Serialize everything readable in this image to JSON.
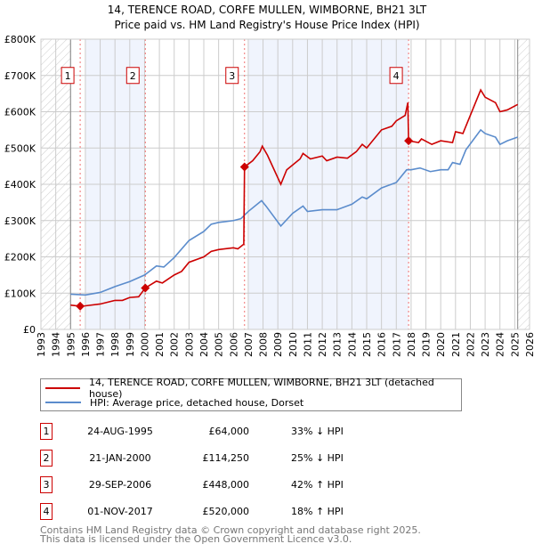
{
  "chart_data": {
    "type": "line",
    "title": "14, TERENCE ROAD, CORFE MULLEN, WIMBORNE, BH21 3LT",
    "subtitle": "Price paid vs. HM Land Registry's House Price Index (HPI)",
    "xlim": [
      1993,
      2026
    ],
    "ylim": [
      0,
      800000
    ],
    "y_ticks": [
      {
        "v": 0,
        "label": "£0"
      },
      {
        "v": 100000,
        "label": "£100K"
      },
      {
        "v": 200000,
        "label": "£200K"
      },
      {
        "v": 300000,
        "label": "£300K"
      },
      {
        "v": 400000,
        "label": "£400K"
      },
      {
        "v": 500000,
        "label": "£500K"
      },
      {
        "v": 600000,
        "label": "£600K"
      },
      {
        "v": 700000,
        "label": "£700K"
      },
      {
        "v": 800000,
        "label": "£800K"
      }
    ],
    "x_ticks": [
      "1993",
      "1994",
      "1995",
      "1996",
      "1997",
      "1998",
      "1999",
      "2000",
      "2001",
      "2002",
      "2003",
      "2004",
      "2005",
      "2006",
      "2007",
      "2008",
      "2009",
      "2010",
      "2011",
      "2012",
      "2013",
      "2014",
      "2015",
      "2016",
      "2017",
      "2018",
      "2019",
      "2020",
      "2021",
      "2022",
      "2023",
      "2024",
      "2025",
      "2026"
    ],
    "grid": true,
    "shaded_ranges": [
      [
        1996.0,
        2000.05
      ],
      [
        2007.0,
        2017.83
      ]
    ],
    "hatched_ranges": [
      [
        1993,
        1995
      ],
      [
        2025.2,
        2026
      ]
    ],
    "series": [
      {
        "name": "14, TERENCE ROAD, CORFE MULLEN, WIMBORNE, BH21 3LT (detached house)",
        "color": "#cc0000",
        "x": [
          1995.0,
          1995.65,
          1996,
          1997,
          1998,
          1998.5,
          1999,
          1999.6,
          2000.05,
          2000.8,
          2001.2,
          2002,
          2002.5,
          2003,
          2004,
          2004.5,
          2005,
          2006,
          2006.3,
          2006.7,
          2006.75,
          2007.3,
          2007.8,
          2007.95,
          2008.3,
          2009.2,
          2009.6,
          2010.5,
          2010.7,
          2011.2,
          2012,
          2012.3,
          2013,
          2013.7,
          2014.3,
          2014.7,
          2015,
          2016,
          2016.7,
          2017,
          2017.6,
          2017.78,
          2017.83,
          2018.5,
          2018.7,
          2019.4,
          2020,
          2020.8,
          2021,
          2021.5,
          2021.8,
          2022.3,
          2022.7,
          2023,
          2023.7,
          2024,
          2024.5,
          2025.2
        ],
        "y": [
          67000,
          64000,
          65000,
          70000,
          80000,
          80000,
          88000,
          90000,
          114250,
          133000,
          128000,
          150000,
          160000,
          185000,
          200000,
          215000,
          220000,
          225000,
          222000,
          235000,
          448000,
          465000,
          490000,
          505000,
          480000,
          400000,
          440000,
          470000,
          485000,
          470000,
          478000,
          465000,
          475000,
          472000,
          490000,
          510000,
          500000,
          550000,
          560000,
          575000,
          590000,
          625000,
          520000,
          515000,
          525000,
          510000,
          520000,
          515000,
          545000,
          540000,
          570000,
          620000,
          660000,
          640000,
          625000,
          600000,
          605000,
          620000
        ]
      },
      {
        "name": "HPI: Average price, detached house, Dorset",
        "color": "#5b8ccc",
        "x": [
          1995,
          1996,
          1997,
          1998,
          1999,
          2000,
          2000.8,
          2001.3,
          2002,
          2003,
          2004,
          2004.5,
          2005,
          2006,
          2006.5,
          2007,
          2007.9,
          2008.2,
          2009.2,
          2010,
          2010.7,
          2011,
          2012,
          2013,
          2014,
          2014.7,
          2015,
          2016,
          2017,
          2017.7,
          2018,
          2018.6,
          2019.3,
          2020,
          2020.5,
          2020.8,
          2021.3,
          2021.7,
          2022.7,
          2023,
          2023.7,
          2024,
          2024.5,
          2025.2
        ],
        "y": [
          97000,
          95000,
          102000,
          118000,
          132000,
          150000,
          175000,
          172000,
          198000,
          245000,
          270000,
          290000,
          295000,
          300000,
          305000,
          325000,
          355000,
          340000,
          285000,
          320000,
          340000,
          325000,
          330000,
          330000,
          345000,
          365000,
          360000,
          390000,
          405000,
          440000,
          440000,
          445000,
          435000,
          440000,
          440000,
          460000,
          455000,
          495000,
          550000,
          540000,
          530000,
          510000,
          520000,
          530000
        ]
      }
    ],
    "sales": [
      {
        "n": "1",
        "x": 1995.65,
        "y": 64000,
        "date": "24-AUG-1995",
        "price": "£64,000",
        "hpi": "33% ↓ HPI"
      },
      {
        "n": "2",
        "x": 2000.05,
        "y": 114250,
        "date": "21-JAN-2000",
        "price": "£114,250",
        "hpi": "25% ↓ HPI"
      },
      {
        "n": "3",
        "x": 2006.75,
        "y": 448000,
        "date": "29-SEP-2006",
        "price": "£448,000",
        "hpi": "42% ↑ HPI"
      },
      {
        "n": "4",
        "x": 2017.83,
        "y": 520000,
        "date": "01-NOV-2017",
        "price": "£520,000",
        "hpi": "18% ↑ HPI"
      }
    ]
  },
  "legend": {
    "property": "14, TERENCE ROAD, CORFE MULLEN, WIMBORNE, BH21 3LT (detached house)",
    "hpi": "HPI: Average price, detached house, Dorset"
  },
  "footer": {
    "line1": "Contains HM Land Registry data © Crown copyright and database right 2025.",
    "line2": "This data is licensed under the Open Government Licence v3.0."
  }
}
